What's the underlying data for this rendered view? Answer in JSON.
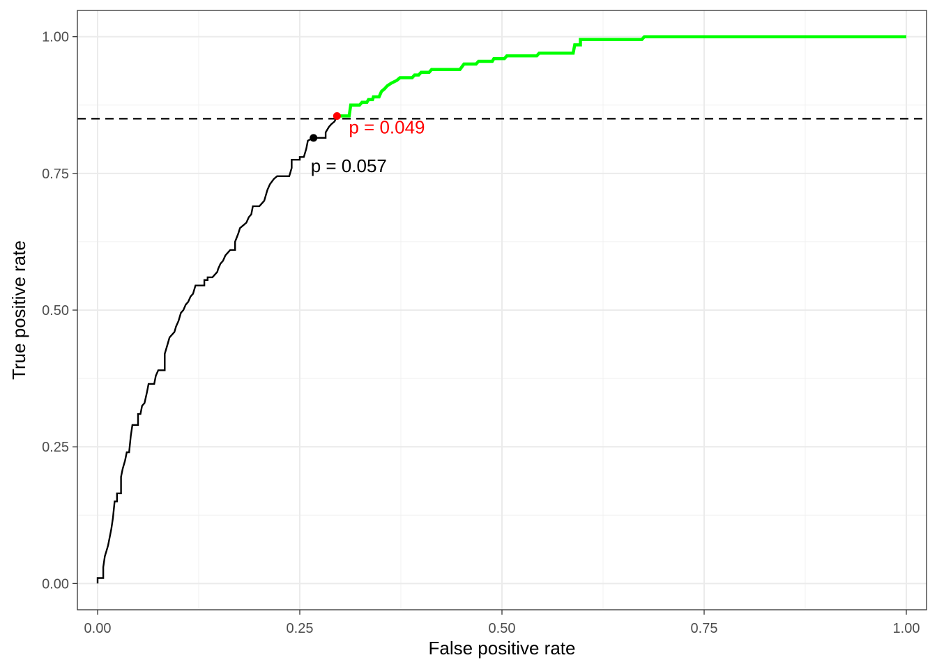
{
  "chart_data": {
    "type": "line",
    "xlabel": "False positive rate",
    "ylabel": "True positive rate",
    "xlim": [
      -0.025,
      1.025
    ],
    "ylim": [
      -0.048,
      1.048
    ],
    "x_ticks": [
      "0.00",
      "0.25",
      "0.50",
      "0.75",
      "1.00"
    ],
    "y_ticks": [
      "0.00",
      "0.25",
      "0.50",
      "0.75",
      "1.00"
    ],
    "grid": true,
    "reference_line": {
      "type": "horizontal",
      "y": 0.85,
      "style": "dashed",
      "color": "#000000"
    },
    "series": [
      {
        "color": "#000000",
        "points": [
          [
            0.0,
            0.0
          ],
          [
            0.0,
            0.01
          ],
          [
            0.007,
            0.01
          ],
          [
            0.007,
            0.03
          ],
          [
            0.009,
            0.05
          ],
          [
            0.011,
            0.06
          ],
          [
            0.013,
            0.07
          ],
          [
            0.015,
            0.085
          ],
          [
            0.017,
            0.1
          ],
          [
            0.019,
            0.12
          ],
          [
            0.021,
            0.15
          ],
          [
            0.024,
            0.15
          ],
          [
            0.024,
            0.165
          ],
          [
            0.029,
            0.165
          ],
          [
            0.029,
            0.195
          ],
          [
            0.031,
            0.21
          ],
          [
            0.034,
            0.225
          ],
          [
            0.036,
            0.24
          ],
          [
            0.039,
            0.24
          ],
          [
            0.041,
            0.27
          ],
          [
            0.043,
            0.29
          ],
          [
            0.05,
            0.29
          ],
          [
            0.05,
            0.31
          ],
          [
            0.053,
            0.31
          ],
          [
            0.055,
            0.325
          ],
          [
            0.058,
            0.33
          ],
          [
            0.061,
            0.35
          ],
          [
            0.063,
            0.365
          ],
          [
            0.07,
            0.365
          ],
          [
            0.072,
            0.38
          ],
          [
            0.075,
            0.39
          ],
          [
            0.083,
            0.39
          ],
          [
            0.083,
            0.42
          ],
          [
            0.086,
            0.435
          ],
          [
            0.089,
            0.45
          ],
          [
            0.092,
            0.455
          ],
          [
            0.095,
            0.46
          ],
          [
            0.097,
            0.47
          ],
          [
            0.1,
            0.48
          ],
          [
            0.103,
            0.495
          ],
          [
            0.106,
            0.5
          ],
          [
            0.109,
            0.51
          ],
          [
            0.112,
            0.515
          ],
          [
            0.115,
            0.525
          ],
          [
            0.118,
            0.53
          ],
          [
            0.121,
            0.545
          ],
          [
            0.132,
            0.545
          ],
          [
            0.132,
            0.555
          ],
          [
            0.136,
            0.555
          ],
          [
            0.136,
            0.56
          ],
          [
            0.142,
            0.56
          ],
          [
            0.148,
            0.57
          ],
          [
            0.149,
            0.575
          ],
          [
            0.152,
            0.585
          ],
          [
            0.155,
            0.59
          ],
          [
            0.158,
            0.6
          ],
          [
            0.161,
            0.605
          ],
          [
            0.164,
            0.61
          ],
          [
            0.17,
            0.61
          ],
          [
            0.17,
            0.625
          ],
          [
            0.174,
            0.64
          ],
          [
            0.176,
            0.65
          ],
          [
            0.18,
            0.655
          ],
          [
            0.184,
            0.66
          ],
          [
            0.187,
            0.67
          ],
          [
            0.19,
            0.675
          ],
          [
            0.192,
            0.69
          ],
          [
            0.2,
            0.69
          ],
          [
            0.206,
            0.7
          ],
          [
            0.208,
            0.71
          ],
          [
            0.21,
            0.72
          ],
          [
            0.213,
            0.73
          ],
          [
            0.218,
            0.74
          ],
          [
            0.222,
            0.745
          ],
          [
            0.237,
            0.745
          ],
          [
            0.24,
            0.76
          ],
          [
            0.24,
            0.775
          ],
          [
            0.25,
            0.775
          ],
          [
            0.25,
            0.78
          ],
          [
            0.255,
            0.78
          ],
          [
            0.258,
            0.795
          ],
          [
            0.26,
            0.81
          ],
          [
            0.267,
            0.815
          ],
          [
            0.282,
            0.815
          ],
          [
            0.282,
            0.825
          ],
          [
            0.286,
            0.835
          ],
          [
            0.289,
            0.84
          ],
          [
            0.293,
            0.845
          ],
          [
            0.296,
            0.855
          ]
        ]
      },
      {
        "color": "#00ff00",
        "points": [
          [
            0.296,
            0.855
          ],
          [
            0.311,
            0.855
          ],
          [
            0.313,
            0.875
          ],
          [
            0.324,
            0.875
          ],
          [
            0.327,
            0.88
          ],
          [
            0.333,
            0.88
          ],
          [
            0.335,
            0.885
          ],
          [
            0.34,
            0.885
          ],
          [
            0.341,
            0.89
          ],
          [
            0.348,
            0.89
          ],
          [
            0.351,
            0.9
          ],
          [
            0.355,
            0.905
          ],
          [
            0.358,
            0.91
          ],
          [
            0.363,
            0.915
          ],
          [
            0.37,
            0.92
          ],
          [
            0.374,
            0.925
          ],
          [
            0.389,
            0.925
          ],
          [
            0.392,
            0.93
          ],
          [
            0.397,
            0.93
          ],
          [
            0.4,
            0.935
          ],
          [
            0.41,
            0.935
          ],
          [
            0.413,
            0.94
          ],
          [
            0.448,
            0.94
          ],
          [
            0.453,
            0.95
          ],
          [
            0.468,
            0.95
          ],
          [
            0.471,
            0.955
          ],
          [
            0.488,
            0.955
          ],
          [
            0.49,
            0.96
          ],
          [
            0.503,
            0.96
          ],
          [
            0.506,
            0.965
          ],
          [
            0.543,
            0.965
          ],
          [
            0.546,
            0.97
          ],
          [
            0.588,
            0.97
          ],
          [
            0.59,
            0.985
          ],
          [
            0.597,
            0.985
          ],
          [
            0.597,
            0.995
          ],
          [
            0.673,
            0.995
          ],
          [
            0.676,
            1.0
          ],
          [
            1.0,
            1.0
          ]
        ]
      }
    ],
    "points": [
      {
        "x": 0.267,
        "y": 0.815,
        "color": "#000000",
        "label": "p = 0.057"
      },
      {
        "x": 0.296,
        "y": 0.855,
        "color": "#ff0000",
        "label": "p = 0.049"
      }
    ]
  }
}
